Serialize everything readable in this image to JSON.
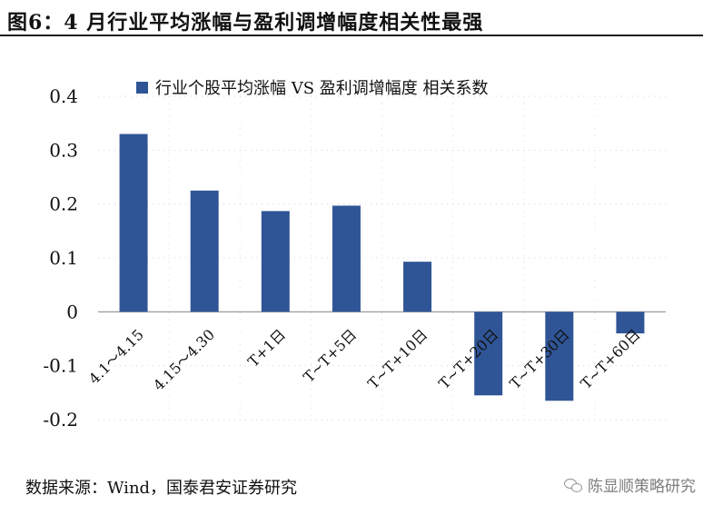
{
  "header": {
    "title": "图6：4 月行业平均涨幅与盈利调增幅度相关性最强"
  },
  "chart_data": {
    "type": "bar",
    "title": "",
    "xlabel": "",
    "ylabel": "",
    "categories": [
      "4.1～4.15",
      "4.15～4.30",
      "T+1日",
      "T~T+5日",
      "T~T+10日",
      "T~T+20日",
      "T~T+30日",
      "T~T+60日"
    ],
    "series": [
      {
        "name": "行业个股平均涨幅 VS 盈利调增幅度 相关系数",
        "values": [
          0.33,
          0.225,
          0.187,
          0.197,
          0.093,
          -0.155,
          -0.165,
          -0.04
        ],
        "color": "#2f5597"
      }
    ],
    "ylim": [
      -0.2,
      0.4
    ],
    "yticks": [
      -0.2,
      -0.1,
      0,
      0.1,
      0.2,
      0.3,
      0.4
    ],
    "ytick_labels": [
      "-0.2",
      "-0.1",
      "0",
      "0.1",
      "0.2",
      "0.3",
      "0.4"
    ],
    "legend_position": "top",
    "grid": true
  },
  "footer": {
    "source": "数据来源：Wind，国泰君安证券研究",
    "watermark": "陈显顺策略研究"
  }
}
